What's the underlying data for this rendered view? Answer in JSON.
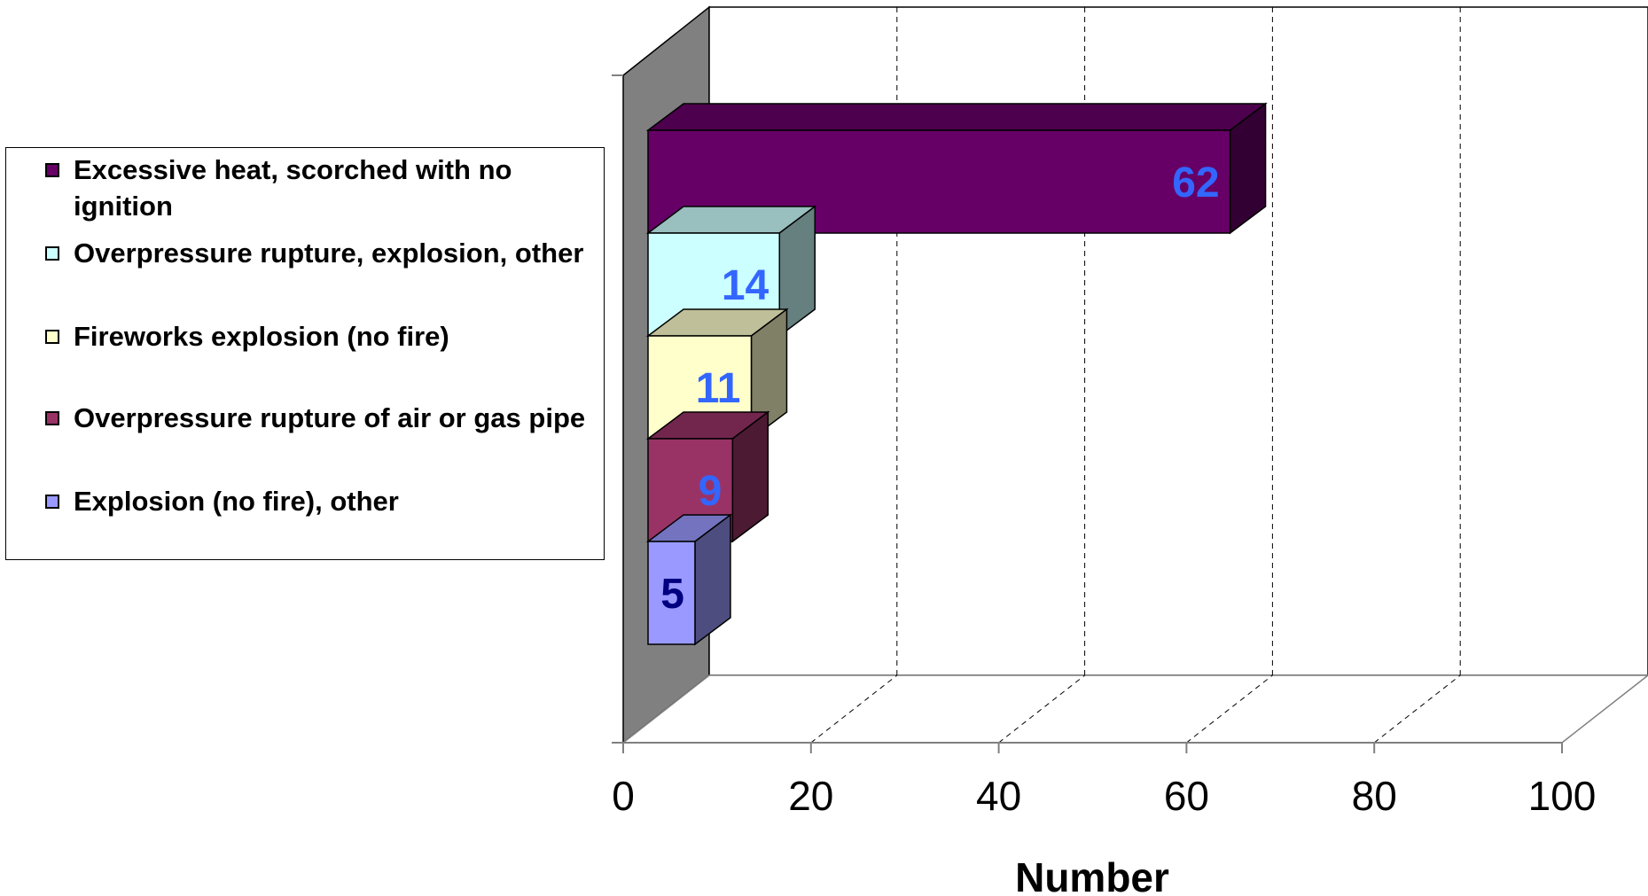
{
  "chart_data": {
    "type": "bar",
    "orientation": "horizontal",
    "three_d": true,
    "categories": [
      "Excessive heat, scorched with no ignition",
      "Overpressure rupture, explosion, other",
      "Fireworks explosion (no fire)",
      "Overpressure rupture of air or gas pipe",
      "Explosion (no fire), other"
    ],
    "values": [
      62,
      14,
      11,
      9,
      5
    ],
    "colors": [
      "#660066",
      "#CCFFFF",
      "#FFFFCC",
      "#993366",
      "#9999FF"
    ],
    "data_label_colors": [
      "#3366FF",
      "#3366FF",
      "#3366FF",
      "#3366FF",
      "#000080"
    ],
    "xlabel": "Number",
    "xlim": [
      0,
      100
    ],
    "xticks": [
      "0",
      "20",
      "40",
      "60",
      "80",
      "100"
    ],
    "grid": "vertical dashed",
    "legend_position": "left"
  }
}
